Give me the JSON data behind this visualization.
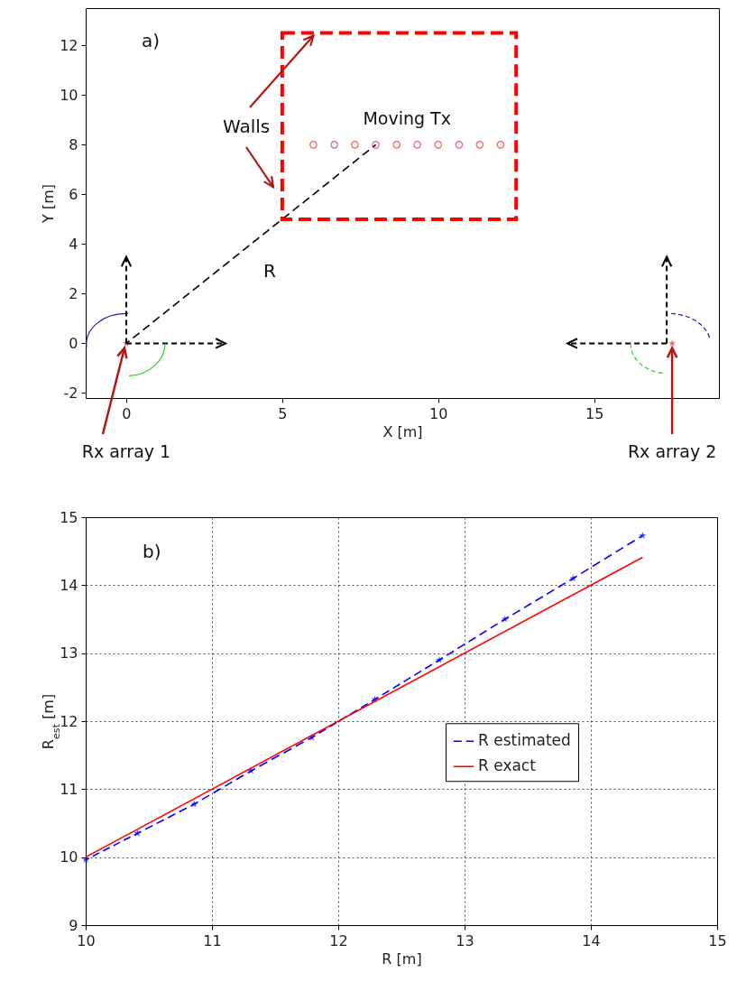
{
  "chart_data": [
    {
      "type": "scatter",
      "xlabel": "X [m]",
      "ylabel": "Y [m]",
      "xlim": [
        -1.3,
        19
      ],
      "ylim": [
        -2.2,
        13.5
      ],
      "xticks": [
        0,
        5,
        10,
        15
      ],
      "yticks": [
        -2,
        0,
        2,
        4,
        6,
        8,
        10,
        12
      ],
      "annotations": [
        "a)",
        "Walls",
        "R"
      ],
      "series": [
        {
          "type": "line",
          "color": "#000000",
          "line_style": "dashed",
          "x": [
            0,
            8
          ],
          "values": [
            0,
            8
          ]
        },
        {
          "name": "Moving Tx",
          "color": "#e02020",
          "marker": "circle",
          "x": [
            6,
            6.67,
            7.33,
            8,
            8.67,
            9.33,
            10,
            10.67,
            11.33,
            12
          ],
          "values": [
            8,
            8,
            8,
            8,
            8,
            8,
            8,
            8,
            8,
            8
          ]
        },
        {
          "name": "Rx array 1",
          "color": "#ff2020",
          "marker": "star",
          "x": [
            0
          ],
          "values": [
            0
          ]
        },
        {
          "name": "Rx array 2",
          "color": "#ff2020",
          "marker": "star",
          "x": [
            17.5
          ],
          "values": [
            0
          ]
        }
      ]
    },
    {
      "type": "line",
      "xlabel": "R [m]",
      "ylabel": "R$_{est}$ [m]",
      "xlim": [
        10,
        15
      ],
      "ylim": [
        9,
        15
      ],
      "xticks": [
        10,
        11,
        12,
        13,
        14,
        15
      ],
      "yticks": [
        9,
        10,
        11,
        12,
        13,
        14,
        15
      ],
      "grid": true,
      "legend": "right",
      "annotations": [
        "b)"
      ],
      "series": [
        {
          "name": "R estimated",
          "color": "#0000ff",
          "line_style": "dashed",
          "marker": "star",
          "x": [
            10,
            10.41,
            10.86,
            11.31,
            11.79,
            12.29,
            12.8,
            13.32,
            13.86,
            14.41
          ],
          "values": [
            9.96,
            10.35,
            10.78,
            11.27,
            11.76,
            12.32,
            12.9,
            13.5,
            14.1,
            14.73
          ]
        },
        {
          "name": "R exact",
          "color": "#ff0000",
          "line_style": "solid",
          "x": [
            10,
            14.41
          ],
          "values": [
            10,
            14.41
          ]
        }
      ]
    }
  ]
}
